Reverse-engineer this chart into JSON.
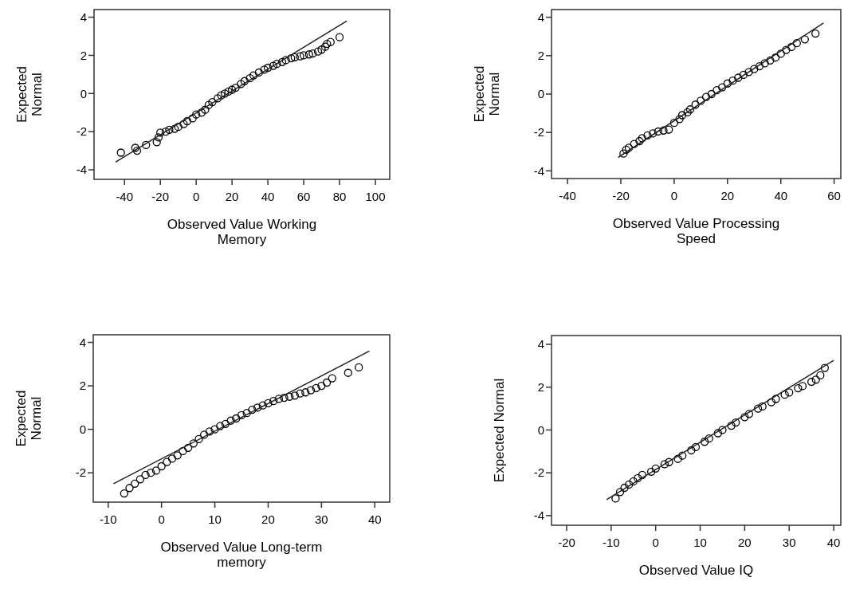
{
  "chart_data": [
    {
      "type": "scatter",
      "xlabel": "Observed Value Working\nMemory",
      "ylabel": "Expected\nNormal",
      "xlim": [
        -57,
        108
      ],
      "ylim": [
        -4.5,
        4.4
      ],
      "xticks": [
        -40,
        -20,
        0,
        20,
        40,
        60,
        80,
        100
      ],
      "yticks": [
        -4,
        -2,
        0,
        2,
        4
      ],
      "series": [
        {
          "marker": "circle",
          "color": "#000000",
          "x": [
            -42,
            -34,
            -33,
            -28,
            -22,
            -21,
            -20,
            -17,
            -15,
            -12,
            -10,
            -7,
            -5,
            -2,
            0,
            3,
            5,
            7,
            9,
            12,
            14,
            16,
            18,
            20,
            22,
            25,
            27,
            30,
            32,
            35,
            38,
            40,
            43,
            45,
            48,
            50,
            53,
            55,
            58,
            60,
            63,
            65,
            68,
            70,
            72,
            73,
            75,
            80
          ],
          "values": [
            -3.1,
            -2.85,
            -3.0,
            -2.7,
            -2.55,
            -2.3,
            -2.05,
            -2.0,
            -1.9,
            -1.85,
            -1.75,
            -1.6,
            -1.45,
            -1.3,
            -1.1,
            -1.0,
            -0.85,
            -0.6,
            -0.45,
            -0.25,
            -0.1,
            0.0,
            0.1,
            0.2,
            0.3,
            0.5,
            0.65,
            0.8,
            0.95,
            1.1,
            1.25,
            1.35,
            1.45,
            1.55,
            1.65,
            1.75,
            1.85,
            1.9,
            1.95,
            2.0,
            2.05,
            2.1,
            2.2,
            2.3,
            2.45,
            2.6,
            2.7,
            2.95
          ]
        },
        {
          "type": "line",
          "color": "#222222",
          "x": [
            -45,
            84
          ],
          "values": [
            -3.6,
            3.8
          ]
        }
      ]
    },
    {
      "type": "scatter",
      "xlabel": "Observed Value Processing\nSpeed",
      "ylabel": "Expected\nNormal",
      "xlim": [
        -46,
        62.5
      ],
      "ylim": [
        -4.4,
        4.4
      ],
      "xticks": [
        -40,
        -20,
        0,
        20,
        40,
        60
      ],
      "yticks": [
        -4,
        -2,
        0,
        2,
        4
      ],
      "series": [
        {
          "marker": "circle",
          "color": "#000000",
          "x": [
            -19,
            -18,
            -17,
            -15,
            -13,
            -12,
            -10,
            -8,
            -6,
            -4,
            -2,
            0,
            2,
            3,
            5,
            6,
            8,
            10,
            12,
            14,
            16,
            18,
            20,
            22,
            24,
            26,
            28,
            30,
            32,
            34,
            36,
            38,
            40,
            42,
            44,
            46,
            49,
            53
          ],
          "values": [
            -3.1,
            -2.9,
            -2.8,
            -2.6,
            -2.45,
            -2.3,
            -2.15,
            -2.05,
            -1.95,
            -1.9,
            -1.85,
            -1.5,
            -1.3,
            -1.1,
            -0.95,
            -0.8,
            -0.55,
            -0.35,
            -0.15,
            0.0,
            0.2,
            0.35,
            0.55,
            0.7,
            0.85,
            1.0,
            1.15,
            1.3,
            1.45,
            1.6,
            1.75,
            1.9,
            2.1,
            2.3,
            2.45,
            2.65,
            2.85,
            3.15
          ]
        },
        {
          "type": "line",
          "color": "#222222",
          "x": [
            -21,
            56
          ],
          "values": [
            -3.3,
            3.7
          ]
        }
      ]
    },
    {
      "type": "scatter",
      "xlabel": "Observed Value Long-term\nmemory",
      "ylabel": "Expected\nNormal",
      "xlim": [
        -12.8,
        42.8
      ],
      "ylim": [
        -3.35,
        4.35
      ],
      "xticks": [
        -10,
        0,
        10,
        20,
        30,
        40
      ],
      "yticks": [
        -2,
        0,
        2,
        4
      ],
      "series": [
        {
          "marker": "circle",
          "color": "#000000",
          "x": [
            -7,
            -6,
            -5,
            -4,
            -3,
            -2,
            -1,
            0,
            1,
            2,
            3,
            4,
            5,
            6,
            7,
            8,
            9,
            10,
            11,
            12,
            13,
            14,
            15,
            16,
            17,
            18,
            19,
            20,
            21,
            22,
            23,
            24,
            25,
            26,
            27,
            28,
            29,
            30,
            31,
            32,
            35,
            37
          ],
          "values": [
            -2.95,
            -2.7,
            -2.5,
            -2.3,
            -2.1,
            -2.0,
            -1.9,
            -1.7,
            -1.5,
            -1.35,
            -1.2,
            -1.0,
            -0.85,
            -0.65,
            -0.45,
            -0.25,
            -0.1,
            0.0,
            0.15,
            0.25,
            0.4,
            0.5,
            0.65,
            0.75,
            0.9,
            1.0,
            1.1,
            1.2,
            1.3,
            1.4,
            1.45,
            1.5,
            1.55,
            1.65,
            1.7,
            1.8,
            1.9,
            2.0,
            2.15,
            2.35,
            2.6,
            2.85
          ]
        },
        {
          "type": "line",
          "color": "#222222",
          "x": [
            -9,
            39
          ],
          "values": [
            -2.5,
            3.6
          ]
        }
      ]
    },
    {
      "type": "scatter",
      "xlabel": "Observed Value IQ",
      "ylabel": "Expected Normal",
      "xlim": [
        -23.4,
        41.6
      ],
      "ylim": [
        -4.45,
        4.41
      ],
      "xticks": [
        -20,
        -10,
        0,
        10,
        20,
        30,
        40
      ],
      "yticks": [
        -4,
        -2,
        0,
        2,
        4
      ],
      "series": [
        {
          "marker": "circle",
          "color": "#000000",
          "x": [
            -9,
            -8,
            -7,
            -6,
            -5,
            -4,
            -3,
            -1,
            0,
            2,
            3,
            5,
            6,
            8,
            9,
            11,
            12,
            14,
            15,
            17,
            18,
            20,
            21,
            23,
            24,
            26,
            27,
            29,
            30,
            32,
            33,
            35,
            36,
            37,
            38
          ],
          "values": [
            -3.2,
            -2.9,
            -2.7,
            -2.55,
            -2.4,
            -2.25,
            -2.1,
            -1.95,
            -1.8,
            -1.6,
            -1.5,
            -1.35,
            -1.2,
            -0.95,
            -0.8,
            -0.55,
            -0.4,
            -0.15,
            0.0,
            0.2,
            0.35,
            0.6,
            0.75,
            1.0,
            1.1,
            1.3,
            1.45,
            1.65,
            1.75,
            1.95,
            2.05,
            2.25,
            2.35,
            2.55,
            2.9
          ]
        },
        {
          "type": "line",
          "color": "#222222",
          "x": [
            -11,
            40
          ],
          "values": [
            -3.25,
            3.25
          ]
        }
      ]
    }
  ]
}
